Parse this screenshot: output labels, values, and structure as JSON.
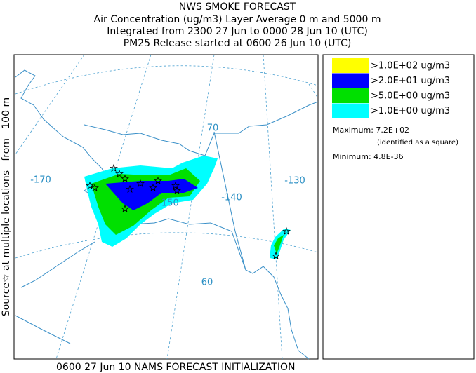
{
  "header": {
    "title": "NWS SMOKE FORECAST",
    "lines": [
      "Air Concentration (ug/m3) Layer Average    0 m and  5000 m",
      "Integrated from 2300 27 Jun to 0000 28 Jun 10 (UTC)",
      "PM25 Release started at 0600 26 Jun 10 (UTC)"
    ]
  },
  "legend": {
    "entries": [
      {
        "label": ">1.0E+02 ug/m3",
        "color": "#ffff00"
      },
      {
        "label": ">2.0E+01 ug/m3",
        "color": "#0000ff"
      },
      {
        "label": ">5.0E+00 ug/m3",
        "color": "#00e000"
      },
      {
        "label": ">1.0E+00 ug/m3",
        "color": "#00ffff"
      }
    ],
    "maximum": "Maximum: 7.2E+02",
    "max_note": "(identified as a square)",
    "minimum": "Minimum: 4.8E-36"
  },
  "map": {
    "labels": [
      "-170",
      "-150",
      "-140",
      "-130",
      "70",
      "60"
    ]
  },
  "side_label": "Source☆ at multiple locations   from   100 m",
  "footer": "0600 27 Jun 10 NAMS FORECAST INITIALIZATION"
}
